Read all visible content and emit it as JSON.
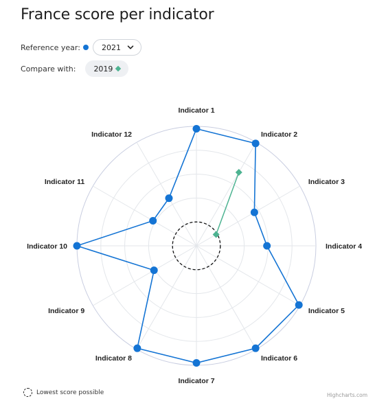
{
  "page": {
    "title": "France score per indicator"
  },
  "controls": {
    "reference_label": "Reference year:",
    "reference_year": "2021",
    "compare_label": "Compare with:",
    "compare_year": "2019"
  },
  "colors": {
    "reference": "#1474d4",
    "compare": "#4db391",
    "grid": "#e3e6ea",
    "outer_ring": "#c8cde0"
  },
  "icons": {
    "reference_marker": "circle-marker-icon",
    "compare_marker": "diamond-marker-icon",
    "dropdown": "chevron-down-icon"
  },
  "chart_data": {
    "type": "radar",
    "title": "",
    "categories": [
      "Indicator 1",
      "Indicator 2",
      "Indicator 3",
      "Indicator 4",
      "Indicator 5",
      "Indicator 6",
      "Indicator 7",
      "Indicator 8",
      "Indicator 9",
      "Indicator 10",
      "Indicator 11",
      "Indicator 12"
    ],
    "rmin": 0,
    "rmax": 1,
    "grid": true,
    "min_score_ring": 0.2,
    "series": [
      {
        "values": [
          0.98,
          0.99,
          0.56,
          0.59,
          0.99,
          0.99,
          0.98,
          0.99,
          0.41,
          1.0,
          0.42,
          0.46
        ]
      },
      {
        "values": [
          null,
          0.71,
          0.19,
          null,
          null,
          null,
          null,
          null,
          null,
          null,
          null,
          null
        ]
      }
    ],
    "legend": {
      "label": "Lowest score possible",
      "position": "bottom-left"
    },
    "credits": "Highcharts.com"
  }
}
